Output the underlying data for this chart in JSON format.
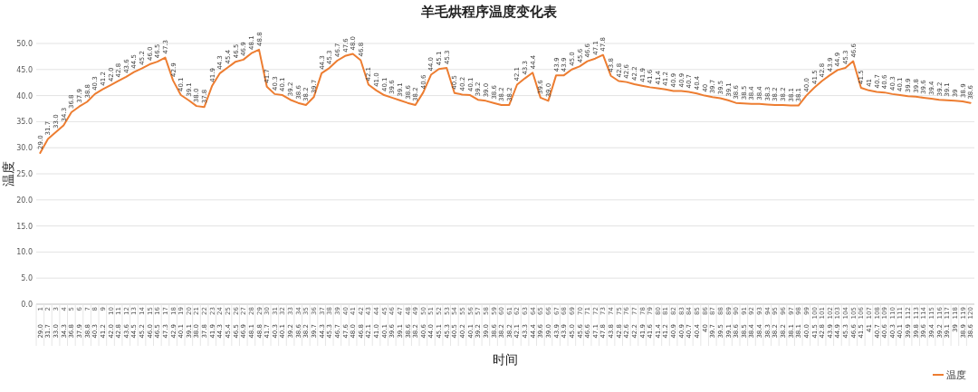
{
  "chart_data": {
    "type": "line",
    "title": "羊毛烘程序温度变化表",
    "xlabel": "时间",
    "ylabel": "温度",
    "categories": [
      "1",
      "2",
      "3",
      "4",
      "5",
      "6",
      "7",
      "8",
      "9",
      "10",
      "11",
      "12",
      "13",
      "14",
      "15",
      "16",
      "17",
      "18",
      "19",
      "20",
      "21",
      "22",
      "23",
      "24",
      "25",
      "26",
      "27",
      "28",
      "29",
      "30",
      "31",
      "32",
      "33",
      "34",
      "35",
      "36",
      "37",
      "38",
      "39",
      "40",
      "41",
      "42",
      "43",
      "44",
      "45",
      "46",
      "47",
      "48",
      "49",
      "50",
      "51",
      "52",
      "53",
      "54",
      "55",
      "56",
      "57",
      "58",
      "59",
      "60",
      "61",
      "62",
      "63",
      "64",
      "65",
      "66",
      "67",
      "68",
      "69",
      "70",
      "71",
      "72",
      "73",
      "74",
      "75",
      "76",
      "77",
      "78",
      "79",
      "80",
      "81",
      "82",
      "83",
      "84",
      "85",
      "86",
      "87",
      "88",
      "89",
      "90",
      "91",
      "92",
      "93",
      "94",
      "95",
      "96",
      "97",
      "98",
      "99",
      "100",
      "101",
      "102",
      "103",
      "104",
      "105",
      "106",
      "107",
      "108",
      "109",
      "110",
      "111",
      "112",
      "113",
      "114",
      "115",
      "116",
      "117",
      "118",
      "119",
      "120"
    ],
    "series": [
      {
        "name": "温度",
        "color": "#ed7d31",
        "values": [
          29.0,
          31.7,
          33.0,
          34.3,
          36.8,
          37.9,
          38.8,
          40.3,
          41.2,
          42.0,
          42.8,
          43.6,
          44.5,
          45.2,
          46.0,
          46.5,
          47.3,
          42.9,
          40.1,
          39.1,
          38.0,
          37.8,
          41.9,
          44.3,
          45.4,
          46.5,
          46.9,
          48.1,
          48.8,
          41.7,
          40.3,
          40.1,
          39.2,
          38.6,
          38.2,
          39.7,
          44.3,
          45.3,
          46.7,
          47.6,
          48.0,
          46.8,
          42.1,
          41.0,
          40.1,
          39.6,
          39.1,
          38.6,
          38.2,
          40.6,
          44.0,
          45.1,
          45.3,
          40.5,
          40.2,
          40.1,
          39.2,
          39.0,
          38.6,
          38.2,
          38.2,
          42.1,
          43.3,
          44.4,
          39.6,
          39.0,
          43.9,
          43.9,
          45.0,
          45.6,
          46.6,
          47.1,
          47.8,
          43.8,
          42.8,
          42.6,
          42.2,
          41.9,
          41.6,
          41.4,
          41.2,
          40.9,
          40.9,
          40.7,
          40.4,
          40.0,
          39.7,
          39.5,
          39.1,
          38.6,
          38.5,
          38.4,
          38.4,
          38.3,
          38.2,
          38.2,
          38.1,
          38.1,
          40.0,
          41.5,
          42.8,
          43.9,
          44.9,
          45.3,
          46.6,
          41.5,
          41.0,
          40.7,
          40.6,
          40.3,
          40.1,
          39.9,
          39.8,
          39.6,
          39.4,
          39.2,
          39.1,
          39.0,
          38.9,
          38.6
        ],
        "value_labels": [
          "29.0",
          "31.7",
          "33.0",
          "34.3",
          "36.8",
          "37.9",
          "38.8",
          "40.3",
          "41.2",
          "42.0",
          "42.8",
          "43.6",
          "44.5",
          "45.2",
          "46.0",
          "46.5",
          "47.3",
          "42.9",
          "40.1",
          "39.1",
          "38.0",
          "37.8",
          "41.9",
          "44.3",
          "45.4",
          "46.5",
          "46.9",
          "48.1",
          "48.8",
          "41.7",
          "40.3",
          "40.1",
          "39.2",
          "38.6",
          "38.2",
          "39.7",
          "44.3",
          "45.3",
          "46.7",
          "47.6",
          "48.0",
          "46.8",
          "42.1",
          "41.0",
          "40.1",
          "39.6",
          "39.1",
          "38.6",
          "38.2",
          "40.6",
          "44.0",
          "45.1",
          "45.3",
          "40.5",
          "40.2",
          "40.1",
          "39.2",
          "39.0",
          "38.6",
          "38.2",
          "38.2",
          "42.1",
          "43.3",
          "44.4",
          "39.6",
          "39.0",
          "43.9",
          "43.9",
          "45.0",
          "45.6",
          "46.6",
          "47.1",
          "47.8",
          "43.8",
          "42.8",
          "42.6",
          "42.2",
          "41.9",
          "41.6",
          "41.4",
          "41.2",
          "40.9",
          "40.9",
          "40.7",
          "40.4",
          "40",
          "39.7",
          "39.5",
          "39.1",
          "38.6",
          "38.5",
          "38.4",
          "38.4",
          "38.3",
          "38.2",
          "38.2",
          "38.1",
          "38.1",
          "40.0",
          "41.5",
          "42.8",
          "43.9",
          "44.9",
          "45.3",
          "46.6",
          "41.5",
          "41",
          "40.7",
          "40.6",
          "40.3",
          "40.1",
          "39.9",
          "39.8",
          "39.6",
          "39.4",
          "39.2",
          "39.1",
          "39",
          "38.9",
          "38.6"
        ]
      }
    ],
    "ylim": [
      0,
      50
    ],
    "yticks": [
      {
        "value": 0,
        "label": "0.0"
      },
      {
        "value": 5,
        "label": "5.0"
      },
      {
        "value": 10,
        "label": "10.0"
      },
      {
        "value": 15,
        "label": "15.0"
      },
      {
        "value": 20,
        "label": "20.0"
      },
      {
        "value": 25,
        "label": "25.0"
      },
      {
        "value": 30,
        "label": "30.0"
      },
      {
        "value": 35,
        "label": "35.0"
      },
      {
        "value": 40,
        "label": "40.0"
      },
      {
        "value": 45,
        "label": "45.0"
      },
      {
        "value": 50,
        "label": "50.0"
      }
    ],
    "grid": "y",
    "legend": "bottom right",
    "marker": "none",
    "line_style": "solid"
  }
}
